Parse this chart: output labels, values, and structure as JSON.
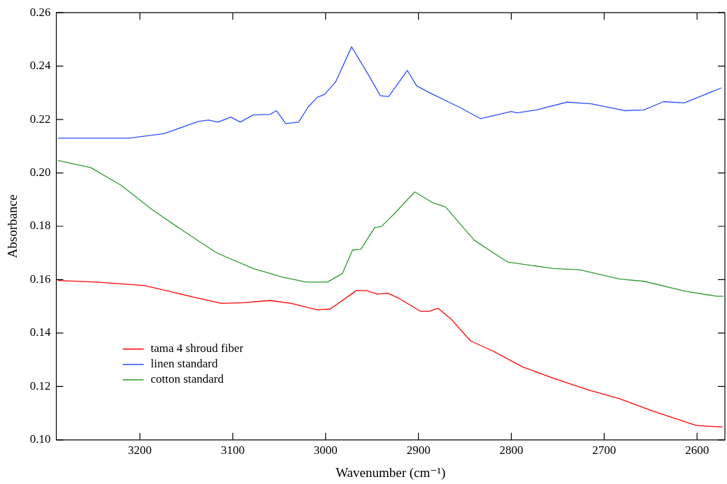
{
  "chart_data": {
    "type": "line",
    "xlabel": "Wavenumber (cm⁻¹)",
    "ylabel": "Absorbance",
    "xlim": [
      3290,
      2570
    ],
    "xticks": [
      3200,
      3100,
      3000,
      2900,
      2800,
      2700,
      2600
    ],
    "ylim": [
      0.1,
      0.26
    ],
    "yticks": [
      {
        "value": 0.1,
        "label": "0.10"
      },
      0.12,
      0.14,
      0.16,
      0.18,
      {
        "value": 0.2,
        "label": "0.20"
      },
      0.22,
      0.24,
      0.26
    ],
    "grid": false,
    "legend": "bottom left",
    "marker": "none",
    "line_style": "solid",
    "series": [
      {
        "name": "tama 4 shroud fiber",
        "color": "#ff0000",
        "x": [
          3288,
          3247,
          3195,
          3140,
          3112,
          3088,
          3060,
          3037,
          3009,
          2995,
          2967,
          2956,
          2944,
          2933,
          2921,
          2898,
          2888,
          2879,
          2865,
          2844,
          2819,
          2787,
          2754,
          2717,
          2684,
          2647,
          2601,
          2573
        ],
        "values": [
          0.1597,
          0.1591,
          0.1578,
          0.1533,
          0.1511,
          0.1514,
          0.1522,
          0.1511,
          0.1487,
          0.149,
          0.1559,
          0.1559,
          0.1546,
          0.1549,
          0.153,
          0.1482,
          0.1482,
          0.1493,
          0.1453,
          0.1371,
          0.1331,
          0.1272,
          0.123,
          0.1187,
          0.1155,
          0.1107,
          0.1054,
          0.1048
        ]
      },
      {
        "name": "linen standard",
        "color": "#2a4eff",
        "x": [
          3288,
          3212,
          3174,
          3137,
          3126,
          3116,
          3102,
          3092,
          3078,
          3060,
          3053,
          3043,
          3029,
          3019,
          3009,
          3001,
          2989,
          2972,
          2954,
          2941,
          2932,
          2912,
          2902,
          2889,
          2856,
          2833,
          2800,
          2794,
          2773,
          2740,
          2714,
          2678,
          2657,
          2636,
          2614,
          2574
        ],
        "values": [
          0.213,
          0.213,
          0.2147,
          0.2193,
          0.2198,
          0.219,
          0.2209,
          0.219,
          0.2217,
          0.2219,
          0.2233,
          0.2185,
          0.219,
          0.2246,
          0.2283,
          0.2294,
          0.2342,
          0.2472,
          0.2368,
          0.2289,
          0.2286,
          0.2384,
          0.2326,
          0.2302,
          0.2246,
          0.2203,
          0.223,
          0.2225,
          0.2236,
          0.2265,
          0.2259,
          0.2233,
          0.2236,
          0.2267,
          0.2262,
          0.2318
        ]
      },
      {
        "name": "cotton standard",
        "color": "#2e9a2e",
        "x": [
          3288,
          3253,
          3220,
          3187,
          3150,
          3117,
          3078,
          3047,
          3021,
          2998,
          2982,
          2971,
          2962,
          2947,
          2940,
          2926,
          2904,
          2884,
          2871,
          2840,
          2804,
          2755,
          2726,
          2683,
          2657,
          2613,
          2579,
          2572
        ],
        "values": [
          0.2046,
          0.202,
          0.1953,
          0.1863,
          0.1775,
          0.17,
          0.1642,
          0.161,
          0.1591,
          0.1591,
          0.1623,
          0.1711,
          0.1714,
          0.1796,
          0.1799,
          0.1847,
          0.1929,
          0.1887,
          0.1873,
          0.1748,
          0.1666,
          0.1642,
          0.1637,
          0.1602,
          0.1594,
          0.1557,
          0.1538,
          0.1538
        ]
      }
    ]
  }
}
